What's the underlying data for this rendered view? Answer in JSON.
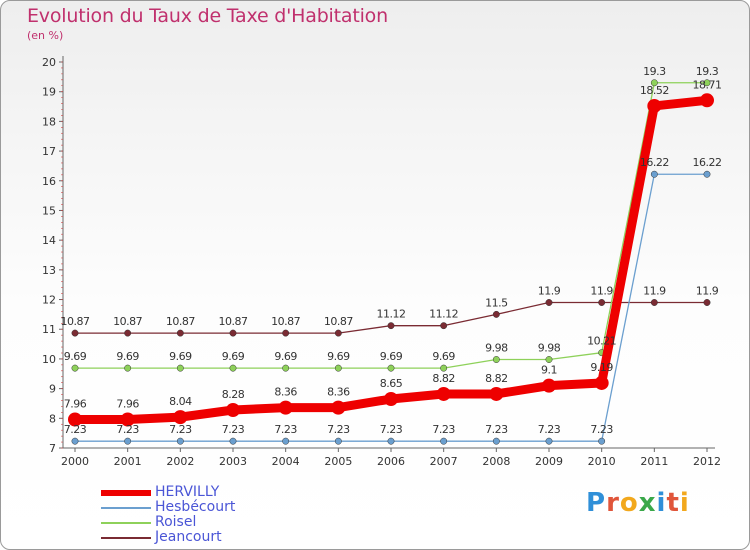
{
  "title": "Evolution du Taux de Taxe d'Habitation",
  "unit_label": "(en %)",
  "logo_text": "Proxiti",
  "colors": {
    "title": "#c0306d",
    "hervilly": "#ee0000",
    "hesbecourt": "#6b9fcf",
    "roisel": "#8ed15a",
    "jeancourt": "#7a2b33",
    "legend_text": "#4a55d6"
  },
  "chart_data": {
    "type": "line",
    "title": "Evolution du Taux de Taxe d'Habitation",
    "ylabel": "(en %)",
    "xlabel": "",
    "x": [
      "2000",
      "2001",
      "2002",
      "2003",
      "2004",
      "2005",
      "2006",
      "2007",
      "2008",
      "2009",
      "2010",
      "2011",
      "2012"
    ],
    "ylim": [
      7,
      20
    ],
    "yticks": [
      7,
      8,
      9,
      10,
      11,
      12,
      13,
      14,
      15,
      16,
      17,
      18,
      19,
      20
    ],
    "grid": false,
    "legend_position": "bottom-left",
    "series": [
      {
        "name": "HERVILLY",
        "key": "hervilly",
        "values": [
          7.96,
          7.96,
          8.04,
          8.28,
          8.36,
          8.36,
          8.65,
          8.82,
          8.82,
          9.1,
          9.19,
          18.52,
          18.71
        ]
      },
      {
        "name": "Hesbécourt",
        "key": "hesbecourt",
        "values": [
          7.23,
          7.23,
          7.23,
          7.23,
          7.23,
          7.23,
          7.23,
          7.23,
          7.23,
          7.23,
          7.23,
          16.22,
          16.22
        ]
      },
      {
        "name": "Roisel",
        "key": "roisel",
        "values": [
          9.69,
          9.69,
          9.69,
          9.69,
          9.69,
          9.69,
          9.69,
          9.69,
          9.98,
          9.98,
          10.21,
          19.3,
          19.3
        ]
      },
      {
        "name": "Jeancourt",
        "key": "jeancourt",
        "values": [
          10.87,
          10.87,
          10.87,
          10.87,
          10.87,
          10.87,
          11.12,
          11.12,
          11.5,
          11.9,
          11.9,
          11.9,
          11.9
        ]
      }
    ],
    "data_labels": {
      "hervilly": [
        "7.96",
        "7.96",
        "8.04",
        "8.28",
        "8.36",
        "8.36",
        "8.65",
        "8.82",
        "8.82",
        "9.1",
        "9.19",
        "18.52",
        "18.71"
      ],
      "hesbecourt": [
        "7.23",
        "7.23",
        "7.23",
        "7.23",
        "7.23",
        "7.23",
        "7.23",
        "7.23",
        "7.23",
        "7.23",
        "7.23",
        "16.22",
        "16.22"
      ],
      "roisel": [
        "9.69",
        "9.69",
        "9.69",
        "9.69",
        "9.69",
        "9.69",
        "9.69",
        "9.69",
        "9.98",
        "9.98",
        "10.21",
        "19.3",
        "19.3"
      ],
      "jeancourt": [
        "10.87",
        "10.87",
        "10.87",
        "10.87",
        "10.87",
        "10.87",
        "11.12",
        "11.12",
        "11.5",
        "11.9",
        "11.9",
        "11.9",
        "11.9"
      ]
    }
  }
}
